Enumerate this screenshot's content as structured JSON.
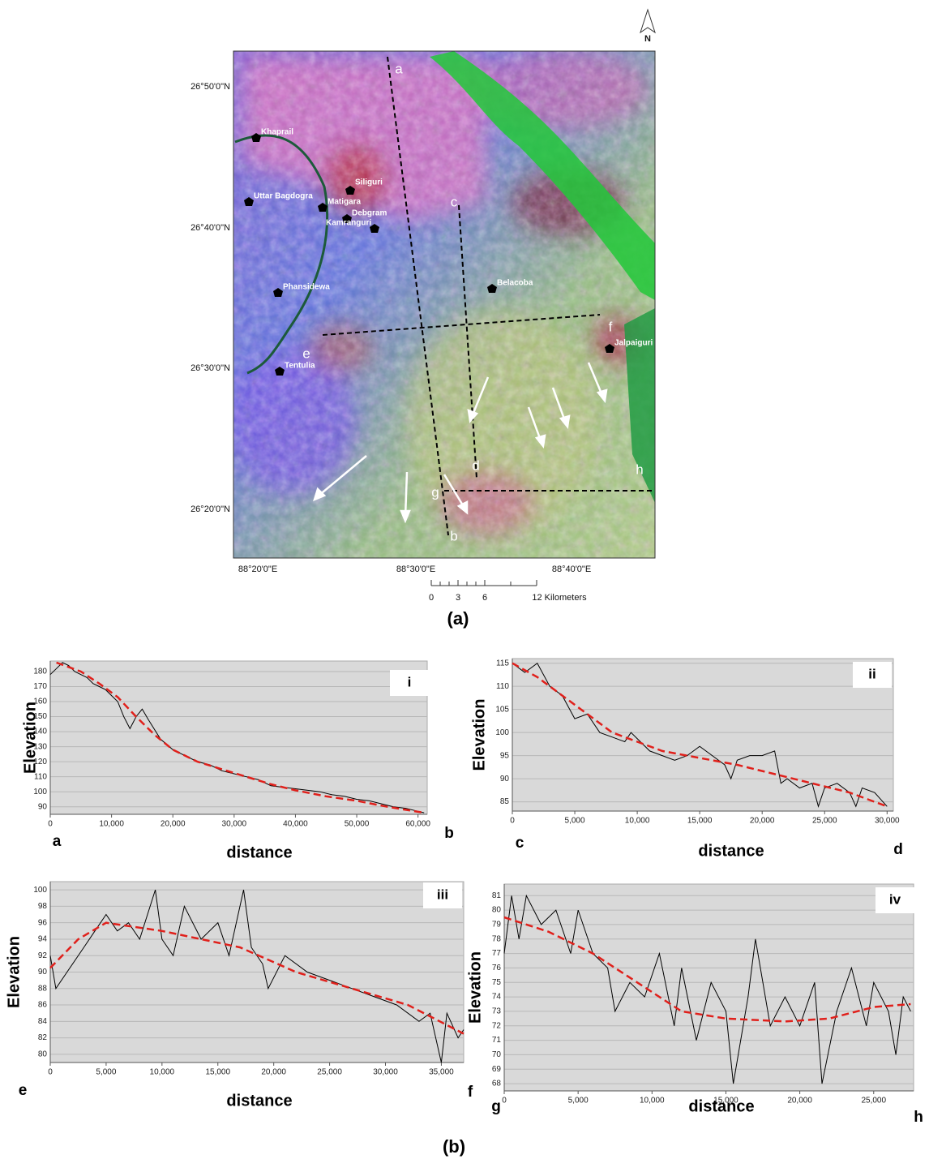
{
  "map": {
    "north": "N",
    "lat_labels": [
      "26°50'0\"N",
      "26°40'0\"N",
      "26°30'0\"N",
      "26°20'0\"N"
    ],
    "lon_labels": [
      "88°20'0\"E",
      "88°30'0\"E",
      "88°40'0\"E"
    ],
    "places": [
      "Khaprail",
      "Uttar Bagdogra",
      "Siliguri",
      "Matigara",
      "Debgram",
      "Kamranguri",
      "Phansidewa",
      "Belacoba",
      "Jalpaiguri",
      "Tentulia"
    ],
    "profile_points": [
      "a",
      "b",
      "c",
      "d",
      "e",
      "f",
      "g",
      "h"
    ],
    "scale_labels": [
      "0",
      "3",
      "6",
      "12 Kilometers"
    ],
    "caption": "(a)"
  },
  "caption_b": "(b)",
  "chart_data": [
    {
      "type": "line",
      "panel": "i",
      "ylabel": "Elevation",
      "xlabel": "distance",
      "start_label": "a",
      "end_label": "b",
      "grid": true,
      "xlim": [
        0,
        61500
      ],
      "ylim": [
        85,
        187
      ],
      "xticks": [
        0,
        {
          "value": 10000,
          "label": "10,000"
        },
        {
          "value": 20000,
          "label": "20,000"
        },
        {
          "value": 30000,
          "label": "30,000"
        },
        {
          "value": 40000,
          "label": "40,000"
        },
        {
          "value": 50000,
          "label": "50,000"
        },
        {
          "value": 60000,
          "label": "60,000"
        }
      ],
      "yticks": [
        90,
        100,
        110,
        120,
        130,
        140,
        150,
        160,
        170,
        180
      ],
      "series": [
        {
          "color": "#000000",
          "style": "solid",
          "x": [
            0,
            1000,
            2000,
            3000,
            4000,
            5000,
            6000,
            7000,
            8000,
            9000,
            10000,
            11000,
            12000,
            13000,
            14000,
            15000,
            16000,
            18000,
            20000,
            22000,
            24000,
            26000,
            28000,
            30000,
            32000,
            34000,
            36000,
            38000,
            40000,
            42000,
            44000,
            46000,
            48000,
            50000,
            52000,
            54000,
            56000,
            58000,
            60000,
            61000
          ],
          "values": [
            178,
            182,
            186,
            184,
            180,
            178,
            176,
            172,
            170,
            168,
            164,
            160,
            150,
            142,
            150,
            155,
            148,
            135,
            128,
            124,
            120,
            118,
            114,
            112,
            110,
            108,
            104,
            103,
            102,
            101,
            100,
            98,
            97,
            95,
            94,
            92,
            90,
            89,
            87,
            86
          ]
        },
        {
          "color": "#e0201b",
          "style": "dashed",
          "x": [
            1000,
            5000,
            8000,
            11000,
            14000,
            17000,
            20000,
            24000,
            28000,
            32000,
            36000,
            40000,
            45000,
            50000,
            55000,
            61000
          ],
          "values": [
            186,
            180,
            172,
            163,
            150,
            138,
            128,
            120,
            115,
            110,
            105,
            101,
            97,
            94,
            90,
            86
          ]
        }
      ]
    },
    {
      "type": "line",
      "panel": "ii",
      "ylabel": "Elevation",
      "xlabel": "distance",
      "start_label": "c",
      "end_label": "d",
      "grid": true,
      "xlim": [
        0,
        30500
      ],
      "ylim": [
        83,
        116
      ],
      "xticks": [
        0,
        {
          "value": 5000,
          "label": "5,000"
        },
        {
          "value": 10000,
          "label": "10,000"
        },
        {
          "value": 15000,
          "label": "15,000"
        },
        {
          "value": 20000,
          "label": "20,000"
        },
        {
          "value": 25000,
          "label": "25,000"
        },
        {
          "value": 30000,
          "label": "30,000"
        }
      ],
      "yticks": [
        85,
        90,
        95,
        100,
        105,
        110,
        115
      ],
      "series": [
        {
          "color": "#000000",
          "style": "solid",
          "x": [
            0,
            1000,
            2000,
            3000,
            4000,
            5000,
            6000,
            7000,
            8000,
            9000,
            9500,
            11000,
            12000,
            13000,
            14000,
            15000,
            16000,
            17000,
            17500,
            18000,
            19000,
            20000,
            21000,
            21500,
            22000,
            23000,
            24000,
            24500,
            25000,
            26000,
            27000,
            27500,
            28000,
            29000,
            30000
          ],
          "values": [
            115,
            113,
            115,
            110,
            108,
            103,
            104,
            100,
            99,
            98,
            100,
            96,
            95,
            94,
            95,
            97,
            95,
            93,
            90,
            94,
            95,
            95,
            96,
            89,
            90,
            88,
            89,
            84,
            88,
            89,
            87,
            84,
            88,
            87,
            84
          ]
        },
        {
          "color": "#e0201b",
          "style": "dashed",
          "x": [
            0,
            2000,
            4000,
            6000,
            8000,
            10000,
            12000,
            15000,
            18000,
            21000,
            24000,
            27000,
            30000
          ],
          "values": [
            115,
            112,
            108,
            104,
            100,
            98,
            96,
            94.5,
            93,
            91,
            89,
            87,
            84
          ]
        }
      ]
    },
    {
      "type": "line",
      "panel": "iii",
      "ylabel": "Elevation",
      "xlabel": "distance",
      "start_label": "e",
      "end_label": "f",
      "grid": true,
      "xlim": [
        0,
        37000
      ],
      "ylim": [
        79,
        101
      ],
      "xticks": [
        0,
        {
          "value": 5000,
          "label": "5,000"
        },
        {
          "value": 10000,
          "label": "10,000"
        },
        {
          "value": 15000,
          "label": "15,000"
        },
        {
          "value": 20000,
          "label": "20,000"
        },
        {
          "value": 25000,
          "label": "25,000"
        },
        {
          "value": 30000,
          "label": "30,000"
        },
        {
          "value": 35000,
          "label": "35,000"
        }
      ],
      "yticks": [
        80,
        82,
        84,
        86,
        88,
        90,
        92,
        94,
        96,
        98,
        100
      ],
      "series": [
        {
          "color": "#000000",
          "style": "solid",
          "x": [
            0,
            500,
            1500,
            3000,
            4000,
            5000,
            6000,
            7000,
            8000,
            9400,
            10000,
            11000,
            12000,
            13500,
            15000,
            16000,
            17300,
            18000,
            19000,
            19500,
            21000,
            23000,
            25000,
            27000,
            29000,
            31000,
            33000,
            34000,
            35000,
            35500,
            36500,
            37000
          ],
          "values": [
            92,
            88,
            90,
            93,
            95,
            97,
            95,
            96,
            94,
            100,
            94,
            92,
            98,
            94,
            96,
            92,
            100,
            93,
            91,
            88,
            92,
            90,
            89,
            88,
            87,
            86,
            84,
            85,
            79,
            85,
            82,
            83
          ]
        },
        {
          "color": "#e0201b",
          "style": "dashed",
          "x": [
            0,
            2500,
            5000,
            10000,
            17000,
            22000,
            27000,
            32000,
            37000
          ],
          "values": [
            90.5,
            94,
            96,
            95,
            93,
            90,
            88,
            86,
            82.5
          ]
        }
      ]
    },
    {
      "type": "line",
      "panel": "iv",
      "ylabel": "Elevation",
      "xlabel": "distance",
      "start_label": "g",
      "end_label": "h",
      "grid": true,
      "xlim": [
        0,
        27700
      ],
      "ylim": [
        67.5,
        81.8
      ],
      "xticks": [
        0,
        {
          "value": 5000,
          "label": "5,000"
        },
        {
          "value": 10000,
          "label": "10,000"
        },
        {
          "value": 15000,
          "label": "15,000"
        },
        {
          "value": 20000,
          "label": "20,000"
        },
        {
          "value": 25000,
          "label": "25,000"
        }
      ],
      "yticks": [
        68,
        69,
        70,
        71,
        72,
        73,
        74,
        75,
        76,
        77,
        78,
        79,
        80,
        81
      ],
      "series": [
        {
          "color": "#000000",
          "style": "solid",
          "x": [
            0,
            500,
            1000,
            1500,
            2500,
            3500,
            4500,
            5000,
            6000,
            7000,
            7500,
            8500,
            9500,
            10500,
            11500,
            12000,
            13000,
            14000,
            15000,
            15500,
            16500,
            17000,
            18000,
            19000,
            20000,
            21000,
            21500,
            22500,
            23500,
            24500,
            25000,
            26000,
            26500,
            27000,
            27500
          ],
          "values": [
            77,
            81,
            78,
            81,
            79,
            80,
            77,
            80,
            77,
            76,
            73,
            75,
            74,
            77,
            72,
            76,
            71,
            75,
            73,
            68,
            74,
            78,
            72,
            74,
            72,
            75,
            68,
            73,
            76,
            72,
            75,
            73,
            70,
            74,
            73
          ]
        },
        {
          "color": "#e0201b",
          "style": "dashed",
          "x": [
            0,
            3000,
            6000,
            9000,
            12000,
            15000,
            19000,
            22000,
            25000,
            27500
          ],
          "values": [
            79.5,
            78.5,
            77,
            75,
            73,
            72.5,
            72.3,
            72.5,
            73.3,
            73.5
          ]
        }
      ]
    }
  ]
}
